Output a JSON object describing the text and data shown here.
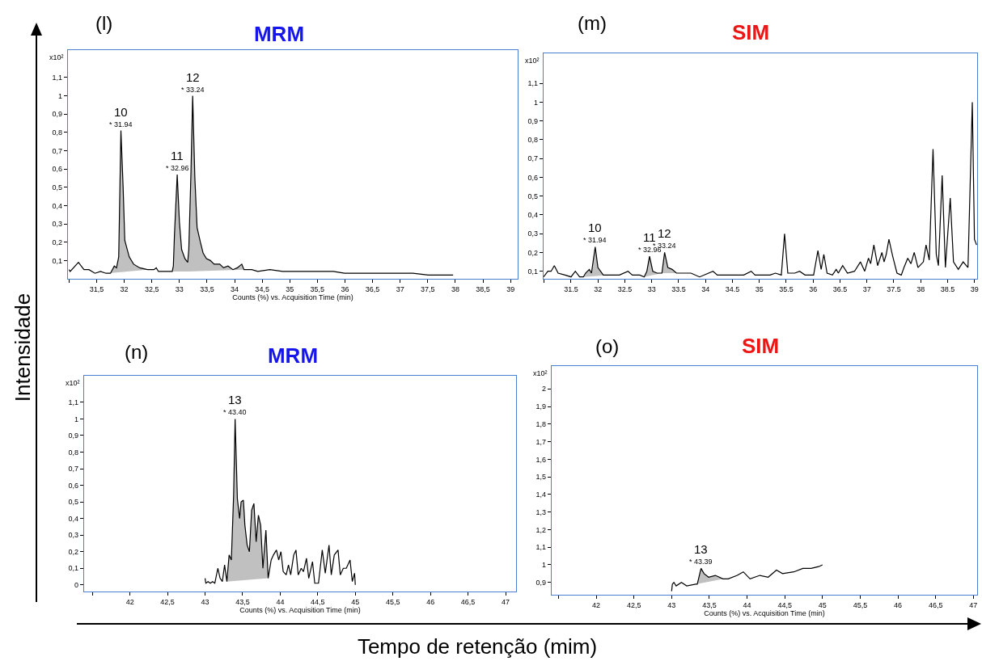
{
  "chart_data": [
    {
      "type": "line",
      "title": "MRM",
      "xlabel": "Counts (%) vs. Acquisition Time (min)",
      "ylabel": "x10²",
      "annotations": [
        "(l)",
        "Intensidade",
        "Tempo de retenção (mim)",
        {
          "text": "* 31.94",
          "x": 31.94,
          "y": 0.81
        },
        {
          "text": "10",
          "x": 31.94,
          "y": 0.81
        },
        {
          "text": "* 32.96",
          "x": 32.96,
          "y": 0.57
        },
        {
          "text": "11",
          "x": 32.96,
          "y": 0.57
        },
        {
          "text": "* 33.24",
          "x": 33.24,
          "y": 1.0
        },
        {
          "text": "12",
          "x": 33.24,
          "y": 1.0
        }
      ],
      "series": [
        {
          "type": "area",
          "color": "#c0c0c0",
          "x": [
            31.7,
            31.75,
            31.82,
            31.86,
            31.9,
            31.94,
            31.98,
            32.01,
            32.09,
            32.17,
            32.28,
            32.42
          ],
          "values": [
            0.03,
            0.03,
            0.07,
            0.06,
            0.12,
            0.81,
            0.5,
            0.21,
            0.12,
            0.08,
            0.06,
            0.05
          ]
        },
        {
          "type": "area",
          "color": "#c0c0c0",
          "x": [
            32.87,
            32.89,
            32.91,
            32.96,
            33.0,
            33.04,
            33.1,
            33.15,
            33.15
          ],
          "values": [
            0.04,
            0.07,
            0.24,
            0.57,
            0.31,
            0.16,
            0.11,
            0.09,
            0.04
          ]
        },
        {
          "type": "area",
          "color": "#c0c0c0",
          "x": [
            33.15,
            33.15,
            33.17,
            33.21,
            33.24,
            33.28,
            33.32,
            33.38,
            33.43,
            33.49,
            33.56,
            33.63,
            33.73,
            33.8,
            33.88,
            33.97,
            34.05,
            34.13,
            34.17
          ],
          "values": [
            0.04,
            0.09,
            0.16,
            0.59,
            1.0,
            0.55,
            0.28,
            0.2,
            0.14,
            0.11,
            0.1,
            0.08,
            0.08,
            0.06,
            0.07,
            0.05,
            0.06,
            0.08,
            0.05
          ]
        },
        {
          "color": "#000000",
          "x": [
            31.0,
            31.02,
            31.17,
            31.27,
            31.36,
            31.47,
            31.57,
            31.67,
            31.7,
            31.75,
            31.82,
            31.86,
            31.9,
            31.94,
            31.98,
            32.01,
            32.09,
            32.17,
            32.28,
            32.42,
            32.54,
            32.58,
            32.62,
            32.73,
            32.85,
            32.87,
            32.89,
            32.91,
            32.96,
            33.0,
            33.04,
            33.1,
            33.15,
            33.17,
            33.21,
            33.24,
            33.28,
            33.32,
            33.38,
            33.43,
            33.49,
            33.56,
            33.63,
            33.73,
            33.8,
            33.88,
            33.97,
            34.05,
            34.13,
            34.17,
            34.31,
            34.42,
            34.64,
            34.87,
            35.09,
            35.26,
            35.43,
            35.65,
            35.79,
            35.99,
            36.22,
            36.44,
            36.67,
            36.95,
            37.23,
            37.51,
            37.79,
            37.96
          ],
          "values": [
            0.05,
            0.04,
            0.09,
            0.05,
            0.05,
            0.03,
            0.04,
            0.03,
            0.03,
            0.03,
            0.07,
            0.06,
            0.12,
            0.81,
            0.5,
            0.21,
            0.12,
            0.08,
            0.06,
            0.05,
            0.05,
            0.06,
            0.04,
            0.04,
            0.04,
            0.04,
            0.07,
            0.24,
            0.57,
            0.31,
            0.16,
            0.11,
            0.09,
            0.16,
            0.59,
            1.0,
            0.55,
            0.28,
            0.2,
            0.14,
            0.11,
            0.1,
            0.08,
            0.08,
            0.06,
            0.07,
            0.05,
            0.06,
            0.08,
            0.05,
            0.05,
            0.04,
            0.05,
            0.04,
            0.04,
            0.04,
            0.04,
            0.04,
            0.04,
            0.03,
            0.03,
            0.03,
            0.03,
            0.03,
            0.03,
            0.02,
            0.02,
            0.02
          ]
        }
      ],
      "xlim": [
        30.98,
        39.13
      ],
      "ylim": [
        0,
        1.25
      ],
      "xticks": [
        {
          "value": 31,
          "label": null
        },
        {
          "value": 31.5,
          "label": "31,5"
        },
        32,
        {
          "value": 32.5,
          "label": "32,5"
        },
        33,
        {
          "value": 33.5,
          "label": "33,5"
        },
        34,
        {
          "value": 34.5,
          "label": "34,5"
        },
        35,
        {
          "value": 35.5,
          "label": "35,5"
        },
        36,
        {
          "value": 36.5,
          "label": "36,5"
        },
        37,
        {
          "value": 37.5,
          "label": "37,5"
        },
        38,
        {
          "value": 38.5,
          "label": "38,5"
        },
        39
      ],
      "yticks": [
        {
          "value": 0.1,
          "label": "0,1"
        },
        {
          "value": 0.2,
          "label": "0,2"
        },
        {
          "value": 0.3,
          "label": "0,3"
        },
        {
          "value": 0.4,
          "label": "0,4"
        },
        {
          "value": 0.5,
          "label": "0,5"
        },
        {
          "value": 0.6,
          "label": "0,6"
        },
        {
          "value": 0.7,
          "label": "0,7"
        },
        {
          "value": 0.8,
          "label": "0,8"
        },
        {
          "value": 0.9,
          "label": "0,9"
        },
        1,
        {
          "value": 1.1,
          "label": "1,1"
        }
      ]
    },
    {
      "type": "line",
      "title": "SIM",
      "ylabel": "x10²",
      "annotations": [
        "(m)",
        {
          "text": "* 31.94",
          "x": 31.95,
          "y": 0.23
        },
        {
          "text": "10",
          "x": 31.95,
          "y": 0.23
        },
        {
          "text": "* 32.96",
          "x": 32.96,
          "y": 0.18
        },
        {
          "text": "11",
          "x": 32.96,
          "y": 0.18
        },
        {
          "text": "* 33.24",
          "x": 33.24,
          "y": 0.2
        },
        {
          "text": "12",
          "x": 33.24,
          "y": 0.2
        }
      ],
      "series": [
        {
          "type": "area",
          "color": "#c0c0c0",
          "x": [
            31.73,
            31.77,
            31.84,
            31.88,
            31.95,
            32.0,
            32.1,
            32.23
          ],
          "values": [
            0.07,
            0.09,
            0.11,
            0.09,
            0.23,
            0.12,
            0.08,
            0.08
          ]
        },
        {
          "type": "area",
          "color": "#c0c0c0",
          "x": [
            32.86,
            32.91,
            32.96,
            33.02,
            33.1,
            33.19
          ],
          "values": [
            0.07,
            0.1,
            0.18,
            0.1,
            0.09,
            0.09
          ]
        },
        {
          "type": "area",
          "color": "#c0c0c0",
          "x": [
            33.19,
            33.24,
            33.3,
            33.38,
            33.46
          ],
          "values": [
            0.09,
            0.2,
            0.12,
            0.11,
            0.09
          ]
        },
        {
          "color": "#000000",
          "x": [
            30.99,
            31.07,
            31.13,
            31.19,
            31.26,
            31.39,
            31.5,
            31.58,
            31.66,
            31.73,
            31.77,
            31.84,
            31.88,
            31.95,
            32.0,
            32.1,
            32.23,
            32.4,
            32.56,
            32.64,
            32.78,
            32.86,
            32.91,
            32.96,
            33.02,
            33.1,
            33.19,
            33.24,
            33.3,
            33.38,
            33.46,
            33.73,
            33.89,
            34.14,
            34.22,
            34.35,
            34.54,
            34.71,
            34.85,
            34.92,
            35.2,
            35.3,
            35.41,
            35.47,
            35.53,
            35.66,
            35.75,
            35.85,
            36.01,
            36.09,
            36.15,
            36.2,
            36.26,
            36.36,
            36.43,
            36.47,
            36.55,
            36.64,
            36.77,
            36.88,
            36.96,
            37.03,
            37.07,
            37.13,
            37.2,
            37.28,
            37.32,
            37.36,
            37.41,
            37.48,
            37.56,
            37.64,
            37.69,
            37.76,
            37.82,
            37.88,
            37.95,
            38.05,
            38.1,
            38.16,
            38.23,
            38.29,
            38.33,
            38.4,
            38.46,
            38.55,
            38.61,
            38.7,
            38.79,
            38.88,
            38.96,
            39.0,
            39.04
          ],
          "values": [
            0.07,
            0.1,
            0.1,
            0.13,
            0.09,
            0.08,
            0.07,
            0.1,
            0.07,
            0.07,
            0.09,
            0.11,
            0.09,
            0.23,
            0.12,
            0.08,
            0.08,
            0.08,
            0.1,
            0.08,
            0.08,
            0.07,
            0.1,
            0.18,
            0.1,
            0.09,
            0.09,
            0.2,
            0.12,
            0.11,
            0.09,
            0.09,
            0.07,
            0.1,
            0.08,
            0.08,
            0.08,
            0.08,
            0.1,
            0.08,
            0.08,
            0.09,
            0.08,
            0.3,
            0.09,
            0.09,
            0.1,
            0.08,
            0.08,
            0.21,
            0.11,
            0.19,
            0.09,
            0.08,
            0.11,
            0.09,
            0.13,
            0.09,
            0.1,
            0.15,
            0.1,
            0.17,
            0.14,
            0.24,
            0.13,
            0.2,
            0.15,
            0.19,
            0.27,
            0.18,
            0.09,
            0.08,
            0.12,
            0.17,
            0.14,
            0.2,
            0.12,
            0.15,
            0.24,
            0.16,
            0.75,
            0.19,
            0.13,
            0.61,
            0.12,
            0.49,
            0.15,
            0.11,
            0.15,
            0.12,
            1.0,
            0.27,
            0.24
          ]
        }
      ],
      "xlim": [
        30.99,
        39.05
      ],
      "ylim": [
        0.06,
        1.26
      ],
      "xticks": [
        {
          "value": 31,
          "label": null
        },
        31.5,
        32,
        32.5,
        33,
        33.5,
        34,
        34.5,
        35,
        35.5,
        36,
        36.5,
        37,
        37.5,
        38,
        38.5,
        39
      ],
      "yticks": [
        {
          "value": 0.1,
          "label": "0,1"
        },
        {
          "value": 0.2,
          "label": "0,2"
        },
        {
          "value": 0.3,
          "label": "0,3"
        },
        {
          "value": 0.4,
          "label": "0,4"
        },
        {
          "value": 0.5,
          "label": "0,5"
        },
        {
          "value": 0.6,
          "label": "0,6"
        },
        {
          "value": 0.7,
          "label": "0,7"
        },
        {
          "value": 0.8,
          "label": "0,8"
        },
        {
          "value": 0.9,
          "label": "0,9"
        },
        1,
        {
          "value": 1.1,
          "label": "1,1"
        }
      ]
    },
    {
      "type": "line",
      "title": "MRM",
      "xlabel": "Counts (%) vs. Acquisition Time (min)",
      "ylabel": "x10²",
      "annotations": [
        "(n)",
        {
          "text": "* 43.40",
          "x": 43.4,
          "y": 1.0
        },
        {
          "text": "13",
          "x": 43.4,
          "y": 1.0
        }
      ],
      "series": [
        {
          "type": "area",
          "color": "#c0c0c0",
          "x": [
            43.29,
            43.32,
            43.35,
            43.38,
            43.4,
            43.43,
            43.46,
            43.48,
            43.51,
            43.53,
            43.56,
            43.59,
            43.62,
            43.65,
            43.68,
            43.71,
            43.74,
            43.77,
            43.81,
            43.84
          ],
          "values": [
            0.02,
            0.18,
            0.15,
            0.54,
            1.0,
            0.52,
            0.4,
            0.5,
            0.51,
            0.36,
            0.24,
            0.2,
            0.45,
            0.49,
            0.26,
            0.42,
            0.36,
            0.1,
            0.33,
            0.04
          ]
        },
        {
          "color": "#000000",
          "x": [
            43.0,
            43.01,
            43.04,
            43.07,
            43.1,
            43.13,
            43.17,
            43.2,
            43.23,
            43.26,
            43.29,
            43.32,
            43.35,
            43.38,
            43.4,
            43.43,
            43.46,
            43.48,
            43.51,
            43.53,
            43.56,
            43.59,
            43.62,
            43.65,
            43.68,
            43.71,
            43.74,
            43.77,
            43.81,
            43.84,
            43.88,
            43.91,
            43.95,
            43.98,
            44.01,
            44.04,
            44.08,
            44.11,
            44.14,
            44.18,
            44.21,
            44.24,
            44.28,
            44.31,
            44.35,
            44.38,
            44.43,
            44.46,
            44.51,
            44.56,
            44.6,
            44.65,
            44.68,
            44.72,
            44.77,
            44.8,
            44.84,
            44.88,
            44.93,
            44.96,
            44.99,
            45.0
          ],
          "values": [
            0.04,
            0.01,
            0.02,
            0.01,
            0.02,
            0.01,
            0.1,
            0.04,
            0.02,
            0.12,
            0.02,
            0.18,
            0.15,
            0.54,
            1.0,
            0.52,
            0.4,
            0.5,
            0.51,
            0.36,
            0.24,
            0.2,
            0.45,
            0.49,
            0.26,
            0.42,
            0.36,
            0.1,
            0.33,
            0.04,
            0.15,
            0.18,
            0.21,
            0.15,
            0.2,
            0.08,
            0.06,
            0.12,
            0.06,
            0.18,
            0.21,
            0.06,
            0.1,
            0.08,
            0.16,
            0.04,
            0.14,
            0.01,
            0.01,
            0.21,
            0.07,
            0.24,
            0.06,
            0.18,
            0.21,
            0.06,
            0.1,
            0.1,
            0.15,
            0.02,
            0.07,
            0.0
          ]
        }
      ],
      "xlim": [
        41.39,
        47.14
      ],
      "ylim": [
        -0.04,
        1.26
      ],
      "xticks": [
        {
          "value": 41.5,
          "label": null
        },
        42,
        {
          "value": 42.5,
          "label": "42,5"
        },
        43,
        {
          "value": 43.5,
          "label": "43,5"
        },
        44,
        {
          "value": 44.5,
          "label": "44,5"
        },
        45,
        {
          "value": 45.5,
          "label": "45,5"
        },
        46,
        {
          "value": 46.5,
          "label": "46,5"
        },
        47
      ],
      "yticks": [
        0,
        {
          "value": 0.1,
          "label": "0,1"
        },
        {
          "value": 0.2,
          "label": "0,2"
        },
        {
          "value": 0.3,
          "label": "0,3"
        },
        {
          "value": 0.4,
          "label": "0,4"
        },
        {
          "value": 0.5,
          "label": "0,5"
        },
        {
          "value": 0.6,
          "label": "0,6"
        },
        {
          "value": 0.7,
          "label": "0,7"
        },
        {
          "value": 0.8,
          "label": "0,8"
        },
        {
          "value": 0.9,
          "label": "0,9"
        },
        1,
        {
          "value": 1.1,
          "label": "1,1"
        }
      ]
    },
    {
      "type": "line",
      "title": "SIM",
      "xlabel": "Counts (%) vs. Acquisition Time (min)",
      "ylabel": "x10²",
      "annotations": [
        "(o)",
        {
          "text": "* 43.39",
          "x": 43.39,
          "y": 0.98
        },
        {
          "text": "13",
          "x": 43.39,
          "y": 0.98
        }
      ],
      "series": [
        {
          "type": "area",
          "color": "#c0c0c0",
          "x": [
            43.32,
            43.34,
            43.39,
            43.43,
            43.49,
            43.58,
            43.68
          ],
          "values": [
            0.89,
            0.89,
            0.98,
            0.95,
            0.93,
            0.94,
            0.92
          ]
        },
        {
          "color": "#000000",
          "x": [
            43.0,
            43.01,
            43.03,
            43.06,
            43.13,
            43.2,
            43.32,
            43.34,
            43.39,
            43.43,
            43.49,
            43.58,
            43.68,
            43.75,
            43.87,
            43.95,
            44.04,
            44.17,
            44.28,
            44.39,
            44.47,
            44.62,
            44.74,
            44.85,
            44.95,
            45.0
          ],
          "values": [
            0.85,
            0.89,
            0.9,
            0.88,
            0.9,
            0.88,
            0.89,
            0.89,
            0.98,
            0.95,
            0.93,
            0.94,
            0.92,
            0.92,
            0.94,
            0.96,
            0.92,
            0.94,
            0.93,
            0.97,
            0.95,
            0.96,
            0.98,
            0.98,
            0.99,
            1.0
          ]
        }
      ],
      "xlim": [
        41.41,
        47.05
      ],
      "ylim": [
        0.83,
        2.13
      ],
      "xticks": [
        {
          "value": 41.5,
          "label": null
        },
        42,
        {
          "value": 42.5,
          "label": "42,5"
        },
        43,
        {
          "value": 43.5,
          "label": "43,5"
        },
        44,
        {
          "value": 44.5,
          "label": "44,5"
        },
        45,
        {
          "value": 45.5,
          "label": "45,5"
        },
        46,
        {
          "value": 46.5,
          "label": "46,5"
        },
        47
      ],
      "yticks": [
        {
          "value": 0.9,
          "label": "0,9"
        },
        1,
        {
          "value": 1.1,
          "label": "1,1"
        },
        {
          "value": 1.2,
          "label": "1,2"
        },
        {
          "value": 1.3,
          "label": "1,3"
        },
        {
          "value": 1.4,
          "label": "1,4"
        },
        {
          "value": 1.5,
          "label": "1,5"
        },
        {
          "value": 1.6,
          "label": "1,6"
        },
        {
          "value": 1.7,
          "label": "1,7"
        },
        {
          "value": 1.8,
          "label": "1,8"
        },
        {
          "value": 1.9,
          "label": "1,9"
        },
        2
      ]
    }
  ]
}
